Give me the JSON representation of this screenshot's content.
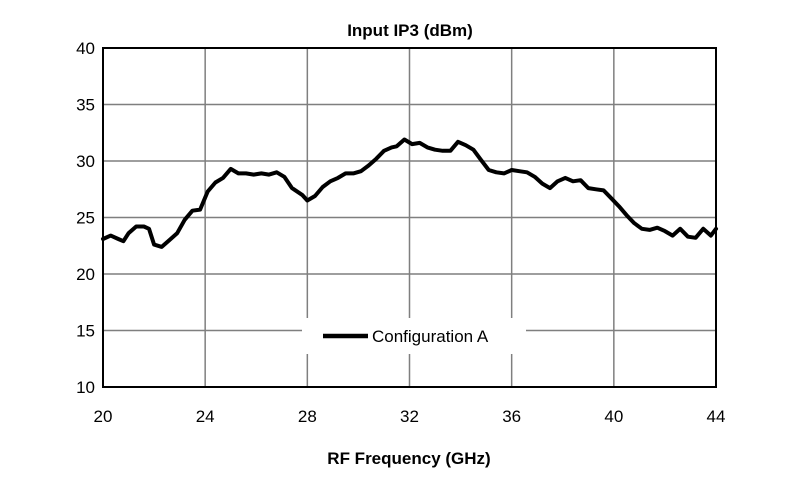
{
  "chart_data": {
    "type": "line",
    "title": "Input IP3 (dBm)",
    "xlabel": "RF Frequency (GHz)",
    "ylabel": "",
    "xlim": [
      20,
      44
    ],
    "ylim": [
      10,
      40
    ],
    "x_ticks": [
      "20",
      "24",
      "28",
      "32",
      "36",
      "40",
      "44"
    ],
    "y_ticks": [
      "10",
      "15",
      "20",
      "25",
      "30",
      "35",
      "40"
    ],
    "grid": true,
    "legend_position": "bottom-center",
    "line_color": "#000000",
    "series": [
      {
        "name": "Configuration A",
        "x": [
          20.0,
          20.3,
          20.6,
          20.8,
          21.0,
          21.3,
          21.6,
          21.8,
          22.0,
          22.3,
          22.6,
          22.9,
          23.2,
          23.5,
          23.8,
          24.1,
          24.4,
          24.7,
          25.0,
          25.3,
          25.6,
          25.9,
          26.2,
          26.5,
          26.8,
          27.1,
          27.4,
          27.8,
          28.0,
          28.3,
          28.6,
          28.9,
          29.2,
          29.5,
          29.8,
          30.1,
          30.4,
          30.7,
          31.0,
          31.3,
          31.5,
          31.8,
          32.1,
          32.4,
          32.7,
          33.0,
          33.3,
          33.6,
          33.9,
          34.2,
          34.5,
          34.8,
          35.1,
          35.4,
          35.7,
          36.0,
          36.3,
          36.6,
          36.9,
          37.2,
          37.5,
          37.8,
          38.1,
          38.4,
          38.7,
          39.0,
          39.3,
          39.6,
          39.9,
          40.2,
          40.5,
          40.8,
          41.1,
          41.4,
          41.7,
          42.0,
          42.3,
          42.6,
          42.9,
          43.2,
          43.5,
          43.8,
          44.0
        ],
        "y": [
          23.1,
          23.4,
          23.1,
          22.9,
          23.6,
          24.2,
          24.2,
          24.0,
          22.6,
          22.4,
          23.0,
          23.6,
          24.8,
          25.6,
          25.7,
          27.3,
          28.1,
          28.5,
          29.3,
          28.9,
          28.9,
          28.8,
          28.9,
          28.8,
          29.0,
          28.6,
          27.6,
          27.0,
          26.5,
          26.9,
          27.7,
          28.2,
          28.5,
          28.9,
          28.9,
          29.1,
          29.6,
          30.2,
          30.9,
          31.2,
          31.3,
          31.9,
          31.5,
          31.6,
          31.2,
          31.0,
          30.9,
          30.9,
          31.7,
          31.4,
          31.0,
          30.1,
          29.2,
          29.0,
          28.9,
          29.2,
          29.1,
          29.0,
          28.6,
          28.0,
          27.6,
          28.2,
          28.5,
          28.2,
          28.3,
          27.6,
          27.5,
          27.4,
          26.7,
          26.0,
          25.2,
          24.5,
          24.0,
          23.9,
          24.1,
          23.8,
          23.4,
          24.0,
          23.3,
          23.2,
          24.0,
          23.4,
          24.0
        ]
      }
    ]
  }
}
